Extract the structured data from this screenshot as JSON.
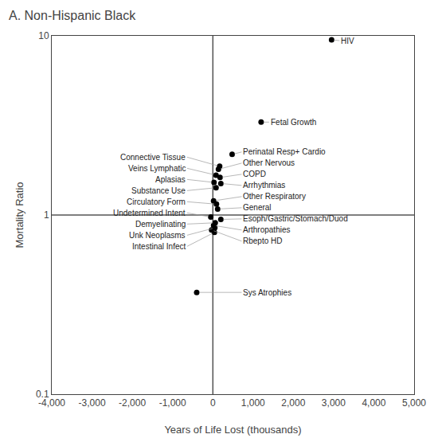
{
  "chart_data": {
    "type": "scatter",
    "title": "A. Non-Hispanic Black",
    "xlabel": "Years of Life Lost (thousands)",
    "ylabel": "Mortality Ratio",
    "x": [
      2950,
      1200,
      480,
      170,
      140,
      80,
      180,
      30,
      200,
      80,
      20,
      90,
      120,
      -50,
      200,
      60,
      20,
      50,
      -30,
      40,
      -400
    ],
    "values": [
      9.5,
      3.3,
      2.18,
      1.87,
      1.8,
      1.67,
      1.62,
      1.52,
      1.5,
      1.42,
      1.2,
      1.15,
      1.08,
      0.975,
      0.945,
      0.905,
      0.875,
      0.848,
      0.825,
      0.8,
      0.37
    ],
    "point_labels": [
      "HIV",
      "Fetal Growth",
      "Perinatal Resp+ Cardio",
      "Connective Tissue",
      "Other Nervous",
      "Veins Lymphatic",
      "COPD",
      "Aplasias",
      "Arrhythmias",
      "Substance Use",
      "Other Respiratory",
      "Circulatory Form",
      "General",
      "Undetermined Intent",
      "Esoph/Gastric/Stomach/Duod",
      "Demyelinating",
      "Arthropathies",
      "Unk Neoplasms",
      "Rbepto HD",
      "Intestinal Infect",
      "Sys Atrophies"
    ],
    "color": "black",
    "xlim": [
      -4000,
      5000
    ],
    "ylim": [
      0.1,
      10.0
    ],
    "xticks": [
      {
        "value": -4000,
        "label": "-4,000"
      },
      {
        "value": -3000,
        "label": "-3,000"
      },
      {
        "value": -2000,
        "label": "-2,000"
      },
      {
        "value": -1000,
        "label": "-1,000"
      },
      0,
      {
        "value": 1000,
        "label": "1,000"
      },
      {
        "value": 2000,
        "label": "2,000"
      },
      {
        "value": 3000,
        "label": "3,000"
      },
      {
        "value": 4000,
        "label": "4,000"
      },
      {
        "value": 5000,
        "label": "5,000"
      }
    ],
    "yticks": [
      0.1,
      1,
      10
    ],
    "log": "y",
    "grid": false,
    "ref_x": 0,
    "ref_y": 1.0
  }
}
